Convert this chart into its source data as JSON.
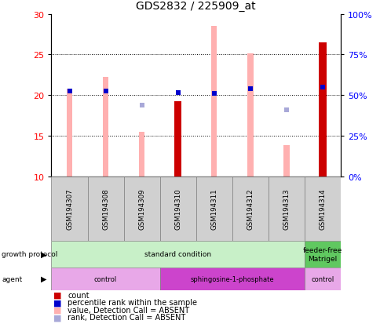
{
  "title": "GDS2832 / 225909_at",
  "samples": [
    "GSM194307",
    "GSM194308",
    "GSM194309",
    "GSM194310",
    "GSM194311",
    "GSM194312",
    "GSM194313",
    "GSM194314"
  ],
  "ylim": [
    10,
    30
  ],
  "yticks_left": [
    10,
    15,
    20,
    25,
    30
  ],
  "yticks_right": [
    0,
    25,
    50,
    75,
    100
  ],
  "pink_bars": [
    20.8,
    22.2,
    15.5,
    null,
    28.5,
    25.1,
    13.8,
    null
  ],
  "dark_red_bars": [
    null,
    null,
    null,
    19.2,
    null,
    null,
    null,
    26.5
  ],
  "blue_squares_y": [
    20.5,
    20.5,
    null,
    20.3,
    20.2,
    20.8,
    null,
    21.0
  ],
  "light_blue_squares_y": [
    null,
    null,
    18.8,
    null,
    null,
    null,
    18.2,
    null
  ],
  "growth_protocol_groups": [
    {
      "label": "standard condition",
      "start": 0,
      "end": 7,
      "color": "#c8f0c8"
    },
    {
      "label": "feeder-free\nMatrigel",
      "start": 7,
      "end": 8,
      "color": "#60c860"
    }
  ],
  "agent_groups": [
    {
      "label": "control",
      "start": 0,
      "end": 3,
      "color": "#e8a8e8"
    },
    {
      "label": "sphingosine-1-phosphate",
      "start": 3,
      "end": 7,
      "color": "#cc44cc"
    },
    {
      "label": "control",
      "start": 7,
      "end": 8,
      "color": "#e8a8e8"
    }
  ],
  "legend_items": [
    {
      "color": "#cc0000",
      "label": "count"
    },
    {
      "color": "#0000cc",
      "label": "percentile rank within the sample"
    },
    {
      "color": "#ffb0b0",
      "label": "value, Detection Call = ABSENT"
    },
    {
      "color": "#a8a8d8",
      "label": "rank, Detection Call = ABSENT"
    }
  ]
}
